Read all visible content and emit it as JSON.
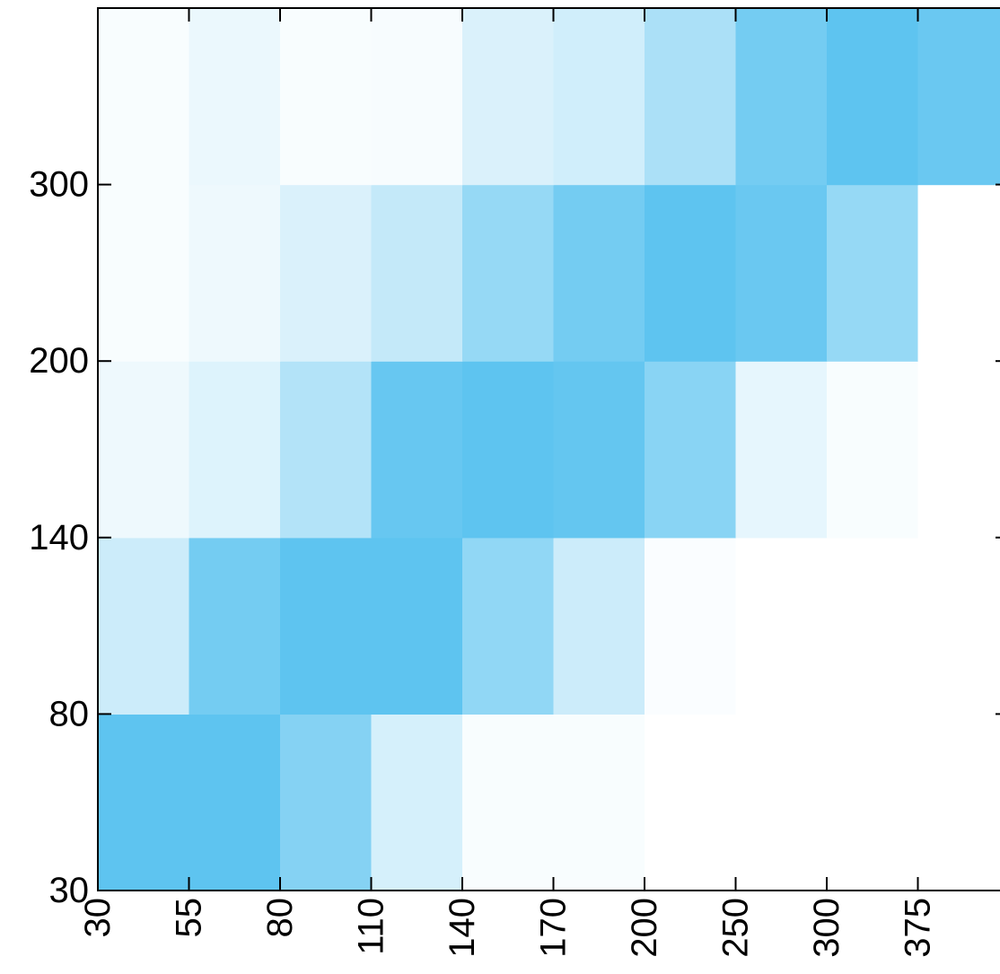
{
  "chart_data": {
    "type": "heatmap",
    "title": "",
    "xlabel": "",
    "ylabel": "",
    "x_tick_labels": [
      "30",
      "55",
      "80",
      "110",
      "140",
      "170",
      "200",
      "250",
      "300",
      "375"
    ],
    "y_tick_labels": [
      "30",
      "80",
      "140",
      "200",
      "300"
    ],
    "x_bins": [
      {
        "from": "30",
        "to": "55"
      },
      {
        "from": "55",
        "to": "80"
      },
      {
        "from": "80",
        "to": "110"
      },
      {
        "from": "110",
        "to": "140"
      },
      {
        "from": "140",
        "to": "170"
      },
      {
        "from": "170",
        "to": "200"
      },
      {
        "from": "200",
        "to": "250"
      },
      {
        "from": "250",
        "to": "300"
      },
      {
        "from": "300",
        "to": "375"
      },
      {
        "from": "375",
        "to": null
      }
    ],
    "y_bins_bottom_to_top": [
      {
        "from": "30",
        "to": "80"
      },
      {
        "from": "80",
        "to": "140"
      },
      {
        "from": "140",
        "to": "200"
      },
      {
        "from": "200",
        "to": "300"
      },
      {
        "from": "300",
        "to": null
      }
    ],
    "value_scale": "relative intensity 0-1 (no colorbar shown)",
    "rows_bottom_to_top": [
      [
        0.95,
        0.95,
        0.72,
        0.25,
        0.04,
        0.04,
        0.0,
        0.0,
        0.0,
        0.0
      ],
      [
        0.3,
        0.82,
        0.95,
        0.95,
        0.65,
        0.3,
        0.03,
        0.0,
        0.0,
        0.0
      ],
      [
        0.1,
        0.2,
        0.45,
        0.9,
        0.95,
        0.92,
        0.7,
        0.15,
        0.04,
        0.0
      ],
      [
        0.04,
        0.1,
        0.22,
        0.35,
        0.62,
        0.82,
        0.95,
        0.88,
        0.62,
        0.0
      ],
      [
        0.04,
        0.12,
        0.04,
        0.05,
        0.22,
        0.28,
        0.5,
        0.82,
        0.95,
        0.88
      ]
    ],
    "color_high": "#56C1EF",
    "color_low": "#FFFFFF",
    "grid": false,
    "legend": "none"
  }
}
